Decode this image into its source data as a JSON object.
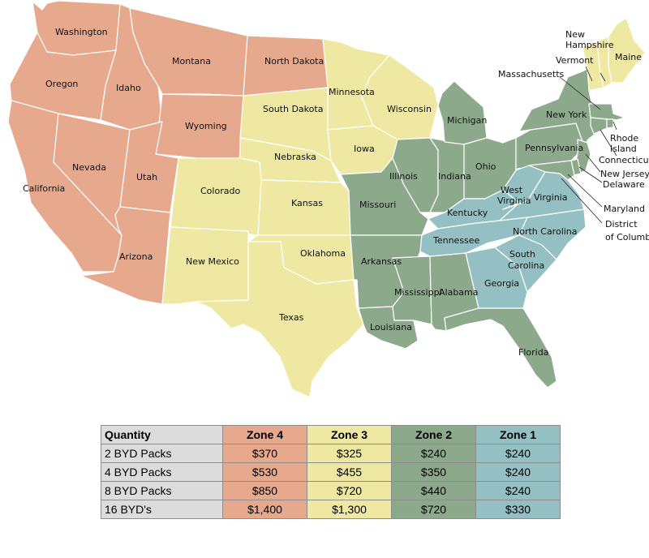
{
  "zone_colors": {
    "zone4": "#E7A98D",
    "zone3": "#EFE8A3",
    "zone2": "#8CAA8B",
    "zone1": "#94C0C4"
  },
  "map": {
    "state_labels": {
      "washington": "Washington",
      "oregon": "Oregon",
      "california": "California",
      "idaho": "Idaho",
      "nevada": "Nevada",
      "utah": "Utah",
      "arizona": "Arizona",
      "montana": "Montana",
      "wyoming": "Wyoming",
      "north_dakota": "North Dakota",
      "south_dakota": "South Dakota",
      "nebraska": "Nebraska",
      "colorado": "Colorado",
      "kansas": "Kansas",
      "oklahoma": "Oklahoma",
      "new_mexico": "New Mexico",
      "texas": "Texas",
      "minnesota": "Minnesota",
      "iowa": "Iowa",
      "wisconsin": "Wisconsin",
      "missouri": "Missouri",
      "arkansas": "Arkansas",
      "louisiana": "Louisiana",
      "illinois": "Illinois",
      "michigan": "Michigan",
      "indiana": "Indiana",
      "ohio": "Ohio",
      "mississippi": "Mississippi",
      "alabama": "Alabama",
      "florida": "Florida",
      "kentucky": "Kentucky",
      "tennessee": "Tennessee",
      "georgia": "Georgia",
      "south_carolina_1": "South",
      "south_carolina_2": "Carolina",
      "north_carolina": "North Carolina",
      "virginia": "Virginia",
      "west_virginia_1": "West",
      "west_virginia_2": "Virginia",
      "pennsylvania": "Pennsylvania",
      "new_york": "New York",
      "maine": "Maine",
      "new_hampshire_1": "New",
      "new_hampshire_2": "Hampshire",
      "vermont": "Vermont",
      "massachusetts": "Massachusetts",
      "rhode_island_1": "Rhode",
      "rhode_island_2": "Island",
      "connecticut": "Connecticut",
      "new_jersey": "New Jersey",
      "delaware": "Delaware",
      "maryland": "Maryland",
      "dc_1": "District",
      "dc_2": "of Columbia"
    }
  },
  "table": {
    "headers": {
      "quantity": "Quantity",
      "zone4": "Zone 4",
      "zone3": "Zone 3",
      "zone2": "Zone 2",
      "zone1": "Zone 1"
    },
    "rows": [
      {
        "quantity": "2 BYD Packs",
        "zone4": "$370",
        "zone3": "$325",
        "zone2": "$240",
        "zone1": "$240"
      },
      {
        "quantity": "4 BYD Packs",
        "zone4": "$530",
        "zone3": "$455",
        "zone2": "$350",
        "zone1": "$240"
      },
      {
        "quantity": "8 BYD Packs",
        "zone4": "$850",
        "zone3": "$720",
        "zone2": "$440",
        "zone1": "$240"
      },
      {
        "quantity": "16 BYD's",
        "zone4": "$1,400",
        "zone3": "$1,300",
        "zone2": "$720",
        "zone1": "$330"
      }
    ]
  }
}
